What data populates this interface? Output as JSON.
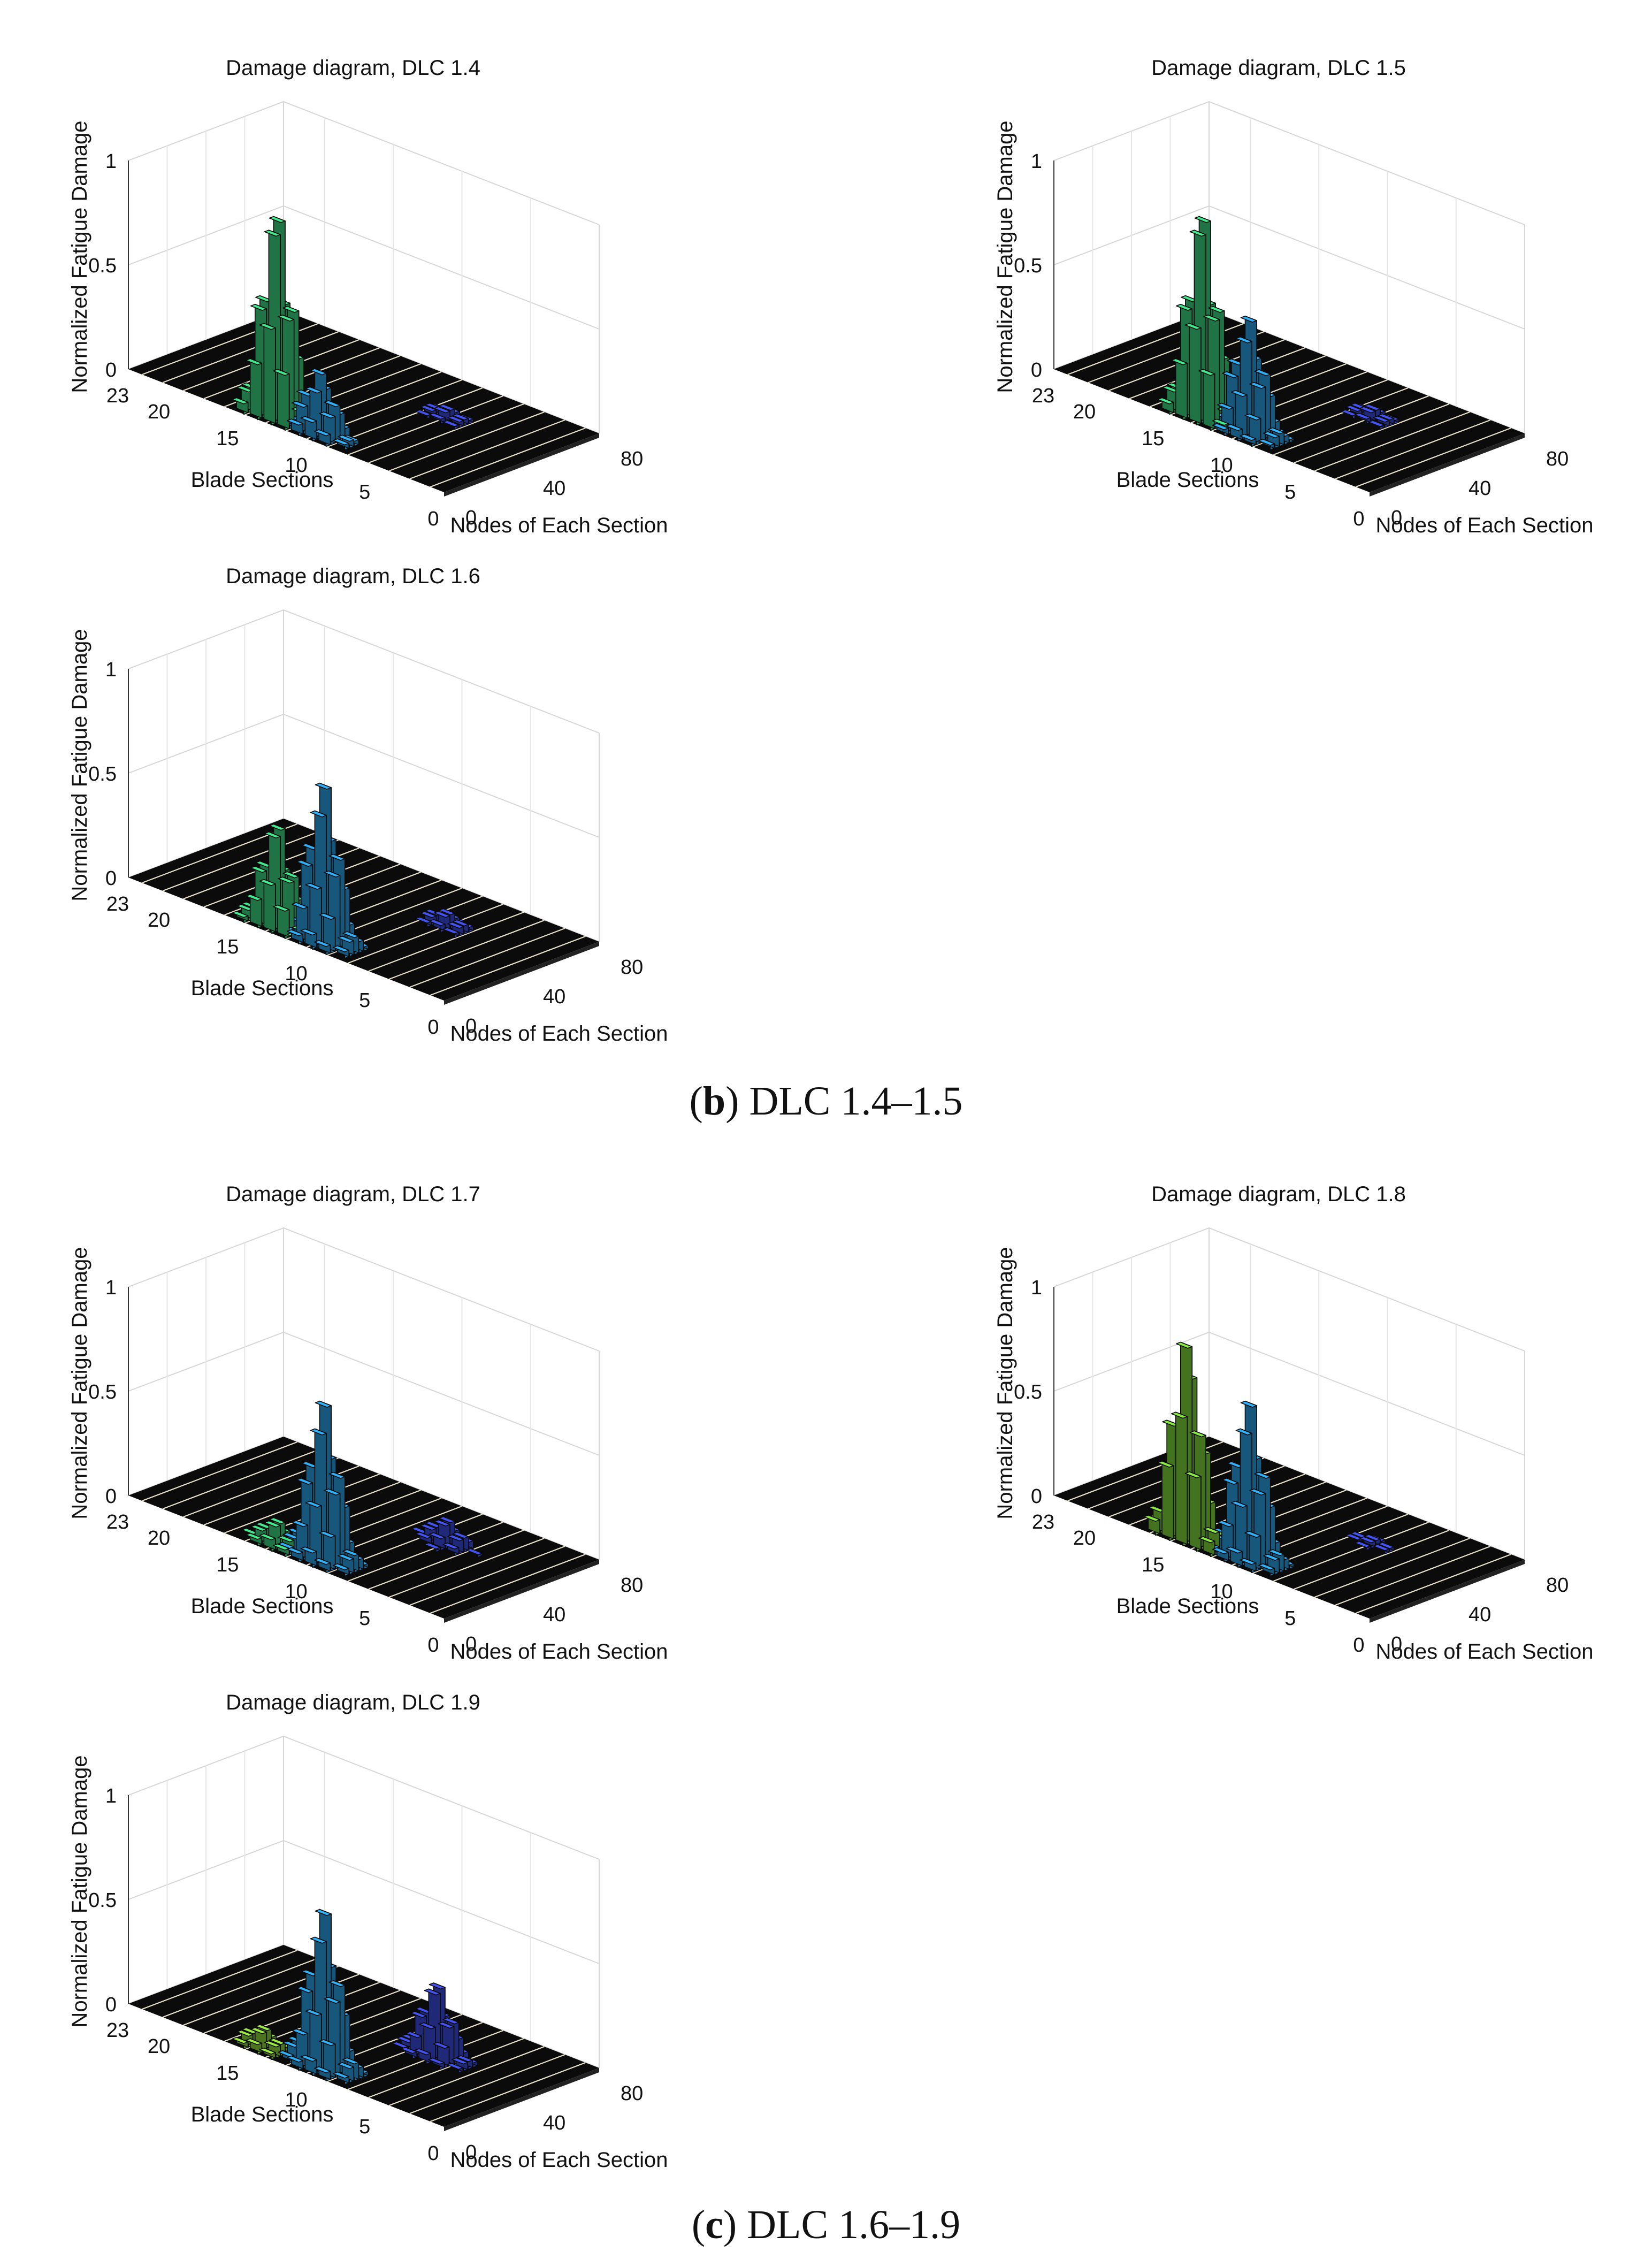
{
  "chart_data": [
    {
      "type": "bar3d",
      "title": "Damage diagram, DLC 1.4",
      "xlabel": "Blade Sections",
      "ylabel": "Nodes of Each Section",
      "zlabel": "Normalized Fatigue Damage",
      "xticks": [
        "0",
        "5",
        "10",
        "15",
        "20",
        "23"
      ],
      "yticks": [
        "0",
        "40",
        "80"
      ],
      "zticks": [
        "0",
        "0.5",
        "1"
      ],
      "xlim": [
        0,
        23
      ],
      "ylim": [
        0,
        80
      ],
      "zlim": [
        0,
        1
      ],
      "peaks": [
        {
          "section": 13,
          "node": 5,
          "value": 1.0,
          "color": "#3ad17e"
        },
        {
          "section": 10,
          "node": 6,
          "value": 0.3,
          "color": "#2a9fe0"
        },
        {
          "section": 7,
          "node": 50,
          "value": 0.05,
          "color": "#3b4ad8"
        }
      ]
    },
    {
      "type": "bar3d",
      "title": "Damage diagram, DLC 1.5",
      "xlabel": "Blade Sections",
      "ylabel": "Nodes of Each Section",
      "zlabel": "Normalized Fatigue Damage",
      "xticks": [
        "0",
        "5",
        "10",
        "15",
        "20",
        "23"
      ],
      "yticks": [
        "0",
        "40",
        "80"
      ],
      "zticks": [
        "0",
        "0.5",
        "1"
      ],
      "xlim": [
        0,
        23
      ],
      "ylim": [
        0,
        80
      ],
      "zlim": [
        0,
        1
      ],
      "peaks": [
        {
          "section": 13,
          "node": 5,
          "value": 1.0,
          "color": "#3ad17e"
        },
        {
          "section": 10,
          "node": 8,
          "value": 0.55,
          "color": "#2a9fe0"
        },
        {
          "section": 7,
          "node": 50,
          "value": 0.05,
          "color": "#3b4ad8"
        }
      ]
    },
    {
      "type": "bar3d",
      "title": "Damage diagram, DLC 1.6",
      "xlabel": "Blade Sections",
      "ylabel": "Nodes of Each Section",
      "zlabel": "Normalized Fatigue Damage",
      "xticks": [
        "0",
        "5",
        "10",
        "15",
        "20",
        "23"
      ],
      "yticks": [
        "0",
        "40",
        "80"
      ],
      "zticks": [
        "0",
        "0.5",
        "1"
      ],
      "xlim": [
        0,
        23
      ],
      "ylim": [
        0,
        80
      ],
      "zlim": [
        0,
        1
      ],
      "peaks": [
        {
          "section": 13,
          "node": 5,
          "value": 0.5,
          "color": "#3ad17e"
        },
        {
          "section": 10,
          "node": 8,
          "value": 0.75,
          "color": "#2a9fe0"
        },
        {
          "section": 7,
          "node": 50,
          "value": 0.07,
          "color": "#3b4ad8"
        }
      ]
    },
    {
      "type": "bar3d",
      "title": "Damage diagram, DLC 1.7",
      "xlabel": "Blade Sections",
      "ylabel": "Nodes of Each Section",
      "zlabel": "Normalized Fatigue Damage",
      "xticks": [
        "0",
        "5",
        "10",
        "15",
        "20",
        "23"
      ],
      "yticks": [
        "0",
        "40",
        "80"
      ],
      "zticks": [
        "0",
        "0.5",
        "1"
      ],
      "xlim": [
        0,
        23
      ],
      "ylim": [
        0,
        80
      ],
      "zlim": [
        0,
        1
      ],
      "peaks": [
        {
          "section": 13,
          "node": 5,
          "value": 0.12,
          "color": "#3ad17e"
        },
        {
          "section": 10,
          "node": 8,
          "value": 0.75,
          "color": "#2a9fe0"
        },
        {
          "section": 7,
          "node": 50,
          "value": 0.12,
          "color": "#3b4ad8"
        }
      ]
    },
    {
      "type": "bar3d",
      "title": "Damage diagram, DLC 1.8",
      "xlabel": "Blade Sections",
      "ylabel": "Nodes of Each Section",
      "zlabel": "Normalized Fatigue Damage",
      "xticks": [
        "0",
        "5",
        "10",
        "15",
        "20",
        "23"
      ],
      "yticks": [
        "0",
        "40",
        "80"
      ],
      "zticks": [
        "0",
        "0.5",
        "1"
      ],
      "xlim": [
        0,
        23
      ],
      "ylim": [
        0,
        80
      ],
      "zlim": [
        0,
        1
      ],
      "peaks": [
        {
          "section": 14,
          "node": 4,
          "value": 0.95,
          "color": "#7cd13a"
        },
        {
          "section": 10,
          "node": 8,
          "value": 0.75,
          "color": "#2a9fe0"
        },
        {
          "section": 7,
          "node": 50,
          "value": 0.03,
          "color": "#3b4ad8"
        }
      ]
    },
    {
      "type": "bar3d",
      "title": "Damage diagram, DLC 1.9",
      "xlabel": "Blade Sections",
      "ylabel": "Nodes of Each Section",
      "zlabel": "Normalized Fatigue Damage",
      "xticks": [
        "0",
        "5",
        "10",
        "15",
        "20",
        "23"
      ],
      "yticks": [
        "0",
        "40",
        "80"
      ],
      "zticks": [
        "0",
        "0.5",
        "1"
      ],
      "xlim": [
        0,
        23
      ],
      "ylim": [
        0,
        80
      ],
      "zlim": [
        0,
        1
      ],
      "peaks": [
        {
          "section": 14,
          "node": 5,
          "value": 0.1,
          "color": "#8ad13a"
        },
        {
          "section": 10,
          "node": 8,
          "value": 0.75,
          "color": "#2a9fe0"
        },
        {
          "section": 7,
          "node": 45,
          "value": 0.35,
          "color": "#3b4ad8"
        }
      ]
    }
  ],
  "captions": {
    "b": {
      "letter": "b",
      "text": "DLC 1.4–1.5"
    },
    "c": {
      "letter": "c",
      "text": "DLC 1.6–1.9"
    }
  }
}
